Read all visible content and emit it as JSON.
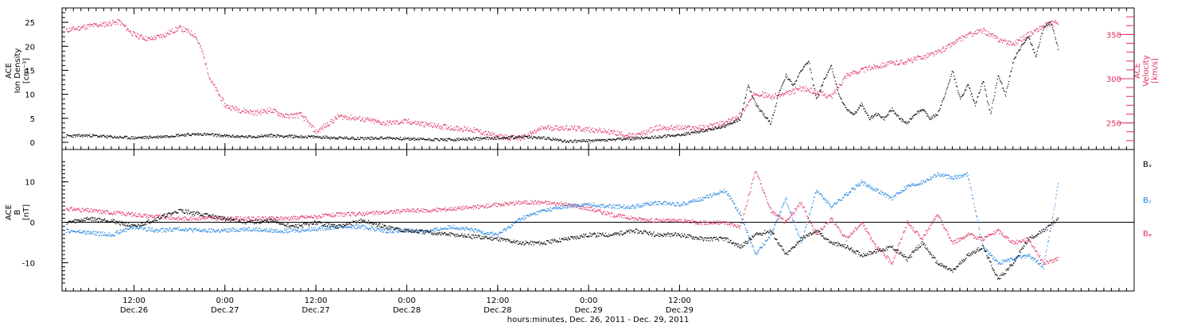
{
  "chart_data": [
    {
      "type": "scatter",
      "panel": "top",
      "ylabel_left": [
        "ACE",
        "Ion Density",
        "[cm⁻³]"
      ],
      "ylabel_right": [
        "ACE",
        "Velocity",
        "[km/s]"
      ],
      "ylim_left": [
        -1.5,
        28
      ],
      "ylim_right": [
        220,
        380
      ],
      "yticks_left": [
        0,
        5,
        10,
        15,
        20,
        25
      ],
      "yticks_right": [
        250,
        300,
        350
      ],
      "series": [
        {
          "axis": "left",
          "color": "#000000",
          "x": [
            -9,
            -6,
            -3,
            0,
            3,
            6,
            9,
            12,
            15,
            18,
            21,
            24,
            27,
            30,
            33,
            36,
            39,
            42,
            45,
            48,
            51,
            54,
            57,
            60,
            63,
            66,
            69,
            72,
            75,
            78,
            80,
            81,
            82,
            83,
            84,
            85,
            86,
            87,
            88,
            89,
            90,
            91,
            92,
            93,
            94,
            95,
            96,
            97,
            98,
            99,
            100,
            101,
            102,
            103,
            104,
            105,
            106,
            107,
            108,
            109,
            110,
            111,
            112,
            113,
            114,
            115,
            116,
            117,
            118,
            119,
            120,
            121,
            122
          ],
          "y": [
            1.4,
            1.5,
            1.2,
            1.0,
            1.2,
            1.6,
            1.8,
            1.4,
            1.2,
            1.5,
            1.3,
            1.2,
            1.0,
            0.9,
            1.0,
            0.8,
            0.7,
            0.6,
            0.8,
            1.0,
            1.2,
            1.0,
            0.3,
            0.4,
            0.6,
            0.9,
            1.2,
            1.6,
            2.5,
            3.5,
            5,
            12,
            8,
            6,
            4,
            10,
            14,
            12,
            15,
            17,
            9,
            13,
            16,
            10,
            7,
            6,
            8,
            5,
            6,
            5,
            7,
            5,
            4,
            6,
            7,
            5,
            6,
            10,
            15,
            9,
            12,
            8,
            13,
            6,
            14,
            10,
            17,
            20,
            22,
            18,
            24,
            25,
            19
          ]
        },
        {
          "axis": "right",
          "color": "#e0305e",
          "x": [
            -9,
            -6,
            -4,
            -2,
            0,
            2,
            4,
            6,
            8,
            9,
            10,
            11,
            12,
            14,
            16,
            18,
            20,
            22,
            24,
            27,
            30,
            33,
            36,
            39,
            42,
            45,
            48,
            51,
            54,
            57,
            60,
            63,
            66,
            69,
            72,
            75,
            78,
            80,
            82,
            84,
            86,
            88,
            90,
            92,
            94,
            96,
            98,
            100,
            102,
            104,
            106,
            108,
            110,
            112,
            114,
            116,
            118,
            120,
            122
          ],
          "y": [
            355,
            360,
            362,
            365,
            350,
            345,
            350,
            358,
            350,
            330,
            300,
            285,
            270,
            265,
            262,
            265,
            258,
            260,
            240,
            258,
            255,
            250,
            252,
            248,
            245,
            242,
            235,
            233,
            245,
            245,
            243,
            240,
            235,
            245,
            245,
            245,
            250,
            260,
            285,
            280,
            283,
            290,
            285,
            280,
            305,
            310,
            315,
            318,
            320,
            325,
            330,
            340,
            350,
            355,
            345,
            340,
            350,
            360,
            365
          ]
        }
      ]
    },
    {
      "type": "scatter",
      "panel": "bottom",
      "ylabel_left": [
        "ACE",
        "B",
        "[nT]"
      ],
      "ylim": [
        -17,
        18
      ],
      "yticks": [
        -10,
        0,
        10
      ],
      "legend": [
        "Bₓ",
        "Bᵧ",
        "Bᵩ"
      ],
      "series": [
        {
          "name": "Bx",
          "color": "#000000",
          "x": [
            -9,
            -6,
            -3,
            0,
            3,
            6,
            9,
            12,
            15,
            18,
            21,
            24,
            27,
            30,
            33,
            36,
            39,
            42,
            45,
            48,
            51,
            54,
            57,
            60,
            63,
            66,
            69,
            72,
            75,
            78,
            80,
            82,
            84,
            86,
            88,
            90,
            92,
            94,
            96,
            98,
            100,
            102,
            104,
            106,
            108,
            110,
            112,
            114,
            116,
            118,
            120,
            122
          ],
          "y": [
            0,
            1,
            0.5,
            -1,
            1,
            3,
            2,
            1,
            0,
            0.5,
            -1,
            0,
            -1,
            0.5,
            -1,
            -2,
            -2.5,
            -3,
            -3.5,
            -4,
            -5,
            -5,
            -4,
            -3,
            -3,
            -2,
            -3,
            -3,
            -4,
            -4,
            -6,
            -3,
            -2,
            -8,
            -4,
            -2,
            -5,
            -6,
            -8,
            -7,
            -6,
            -9,
            -5,
            -10,
            -12,
            -8,
            -6,
            -14,
            -10,
            -4,
            -2,
            1
          ]
        },
        {
          "name": "By",
          "color": "#1a80e0",
          "x": [
            -9,
            -6,
            -3,
            0,
            3,
            6,
            9,
            12,
            15,
            18,
            21,
            24,
            27,
            30,
            33,
            36,
            39,
            42,
            45,
            48,
            51,
            54,
            57,
            60,
            63,
            66,
            69,
            72,
            75,
            78,
            80,
            82,
            84,
            86,
            88,
            90,
            92,
            94,
            96,
            98,
            100,
            102,
            104,
            106,
            108,
            110,
            112,
            114,
            116,
            118,
            120,
            122
          ],
          "y": [
            -2,
            -2.5,
            -3,
            -1,
            -2,
            -1.5,
            -2,
            -2,
            -1.5,
            -2,
            -2,
            -1.5,
            -1,
            -1,
            -2,
            -2,
            -2,
            -1,
            -2,
            -3,
            1,
            3,
            4,
            4.5,
            4,
            4,
            5,
            4.5,
            6,
            8,
            2,
            -8,
            -3,
            6,
            -5,
            8,
            4,
            7,
            10,
            8,
            6,
            9,
            10,
            12,
            11,
            12,
            -6,
            -10,
            -9,
            -8,
            -11,
            10
          ]
        },
        {
          "name": "Bz",
          "color": "#e0305e",
          "x": [
            -9,
            -6,
            -3,
            0,
            3,
            6,
            9,
            12,
            15,
            18,
            21,
            24,
            27,
            30,
            33,
            36,
            39,
            42,
            45,
            48,
            51,
            54,
            57,
            60,
            63,
            66,
            69,
            72,
            75,
            78,
            80,
            82,
            84,
            86,
            88,
            90,
            92,
            94,
            96,
            98,
            100,
            102,
            104,
            106,
            108,
            110,
            112,
            114,
            116,
            118,
            120,
            122
          ],
          "y": [
            3.5,
            3,
            2.5,
            2,
            1.5,
            1,
            1.2,
            1,
            1,
            1,
            1.2,
            1.5,
            2,
            2.2,
            2.5,
            3,
            3,
            3.5,
            3.8,
            4.5,
            5,
            5,
            4.5,
            3.5,
            2,
            1,
            0.5,
            0.5,
            0,
            0,
            -1,
            13,
            3,
            0,
            5,
            -3,
            1,
            -4,
            0,
            -6,
            -10,
            0,
            -4,
            2,
            -5,
            -3,
            -4,
            -2,
            -5,
            -4,
            -10,
            -9
          ]
        }
      ]
    },
    {
      "type": "axis",
      "xlabel": "hours:minutes, Dec. 26, 2011 - Dec. 29, 2011",
      "xlim": [
        -9.5,
        132
      ],
      "xticks": [
        {
          "x": 0,
          "label": "12:00",
          "date": "Dec.26"
        },
        {
          "x": 12,
          "label": "0:00",
          "date": "Dec.27"
        },
        {
          "x": 24,
          "label": "12:00",
          "date": "Dec.27"
        },
        {
          "x": 36,
          "label": "0:00",
          "date": "Dec.28"
        },
        {
          "x": 48,
          "label": "12:00",
          "date": "Dec.28"
        },
        {
          "x": 60,
          "label": "0:00",
          "date": "Dec.29"
        },
        {
          "x": 72,
          "label": "12:00",
          "date": "Dec.29"
        }
      ]
    }
  ]
}
